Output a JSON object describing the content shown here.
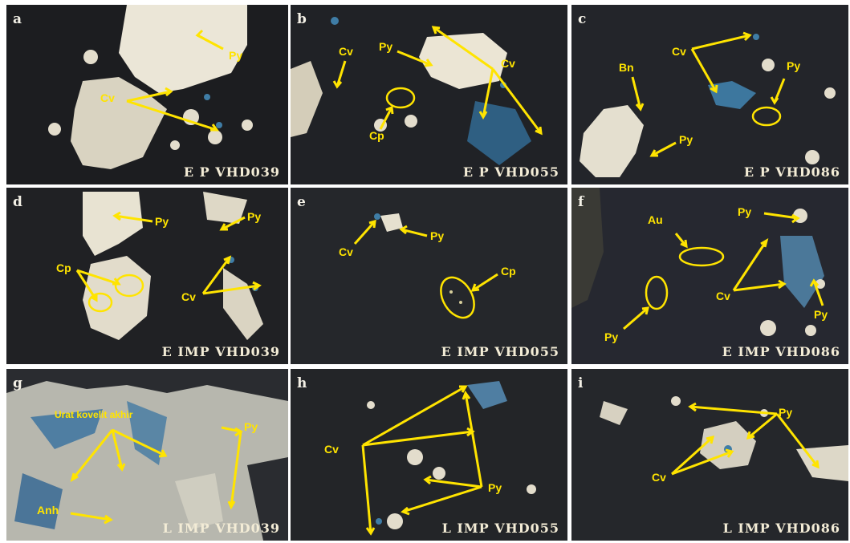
{
  "colors": {
    "annotation": "#ffe400",
    "caption": "#f3ecd6",
    "pyrite": "#e9e3d2",
    "covellite": "#3f7da6",
    "matrix": "#1b1b1d"
  },
  "panels": [
    {
      "letter": "a",
      "caption": "E P VHD039",
      "labels": [
        "Py",
        "Cv"
      ]
    },
    {
      "letter": "b",
      "caption": "E P VHD055",
      "labels": [
        "Py",
        "Cv",
        "Cv",
        "Cp"
      ]
    },
    {
      "letter": "c",
      "caption": "E P VHD086",
      "labels": [
        "Cv",
        "Bn",
        "Py",
        "Py"
      ]
    },
    {
      "letter": "d",
      "caption": "E IMP VHD039",
      "labels": [
        "Py",
        "Py",
        "Cp",
        "Cv"
      ]
    },
    {
      "letter": "e",
      "caption": "E IMP VHD055",
      "labels": [
        "Cv",
        "Py",
        "Cp"
      ]
    },
    {
      "letter": "f",
      "caption": "E IMP VHD086",
      "labels": [
        "Py",
        "Au",
        "Cv",
        "Py",
        "Py"
      ]
    },
    {
      "letter": "g",
      "caption": "L IMP VHD039",
      "labels": [
        "Urat kovelit akhir",
        "Py",
        "Anh"
      ]
    },
    {
      "letter": "h",
      "caption": "L IMP VHD055",
      "labels": [
        "Cv",
        "Py"
      ]
    },
    {
      "letter": "i",
      "caption": "L IMP VHD086",
      "labels": [
        "Py",
        "Cv"
      ]
    }
  ]
}
